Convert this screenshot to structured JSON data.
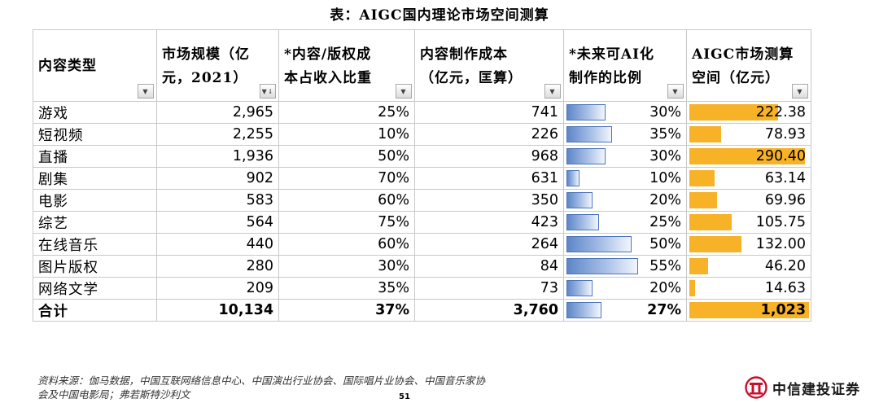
{
  "title": "表：AIGC国内理论市场空间测算",
  "columns": [
    {
      "line1": "内容类型",
      "line2": ""
    },
    {
      "line1": "市场规模（亿",
      "line2": "元，2021）"
    },
    {
      "line1": "*内容/版权成",
      "line2": "本占收入比重"
    },
    {
      "line1": "内容制作成本",
      "line2": "（亿元，匡算）"
    },
    {
      "line1": "*未来可AI化",
      "line2": "制作的比例"
    },
    {
      "line1": "AIGC市场测算",
      "line2": "空间（亿元）"
    }
  ],
  "rows": [
    {
      "category": "游戏",
      "market": "2,965",
      "ratio": "25%",
      "cost": "741",
      "ai": "30%",
      "ai_frac": 0.3,
      "space": "222.38",
      "space_val": 222.38
    },
    {
      "category": "短视频",
      "market": "2,255",
      "ratio": "10%",
      "cost": "226",
      "ai": "35%",
      "ai_frac": 0.35,
      "space": "78.93",
      "space_val": 78.93
    },
    {
      "category": "直播",
      "market": "1,936",
      "ratio": "50%",
      "cost": "968",
      "ai": "30%",
      "ai_frac": 0.3,
      "space": "290.40",
      "space_val": 290.4
    },
    {
      "category": "剧集",
      "market": "902",
      "ratio": "70%",
      "cost": "631",
      "ai": "10%",
      "ai_frac": 0.1,
      "space": "63.14",
      "space_val": 63.14
    },
    {
      "category": "电影",
      "market": "583",
      "ratio": "60%",
      "cost": "350",
      "ai": "20%",
      "ai_frac": 0.2,
      "space": "69.96",
      "space_val": 69.96
    },
    {
      "category": "综艺",
      "market": "564",
      "ratio": "75%",
      "cost": "423",
      "ai": "25%",
      "ai_frac": 0.25,
      "space": "105.75",
      "space_val": 105.75
    },
    {
      "category": "在线音乐",
      "market": "440",
      "ratio": "60%",
      "cost": "264",
      "ai": "50%",
      "ai_frac": 0.5,
      "space": "132.00",
      "space_val": 132.0
    },
    {
      "category": "图片版权",
      "market": "280",
      "ratio": "30%",
      "cost": "84",
      "ai": "55%",
      "ai_frac": 0.55,
      "space": "46.20",
      "space_val": 46.2
    },
    {
      "category": "网络文学",
      "market": "209",
      "ratio": "35%",
      "cost": "73",
      "ai": "20%",
      "ai_frac": 0.2,
      "space": "14.63",
      "space_val": 14.63
    }
  ],
  "total": {
    "category": "合计",
    "market": "10,134",
    "ratio": "37%",
    "cost": "3,760",
    "ai": "27%",
    "ai_frac": 0.27,
    "space": "1,023",
    "space_val": 1023
  },
  "colors": {
    "blue_bar": "#5d86c8",
    "orange_bar": "#f7b228"
  },
  "source": {
    "line1": "资料来源：伽马数据，中国互联网络信息中心、中国演出行业协会、国际唱片业协会、中国音乐家协",
    "line2": "会及中国电影局；弗若斯特沙利文"
  },
  "page_number": "51",
  "logo_text": "中信建投证券"
}
